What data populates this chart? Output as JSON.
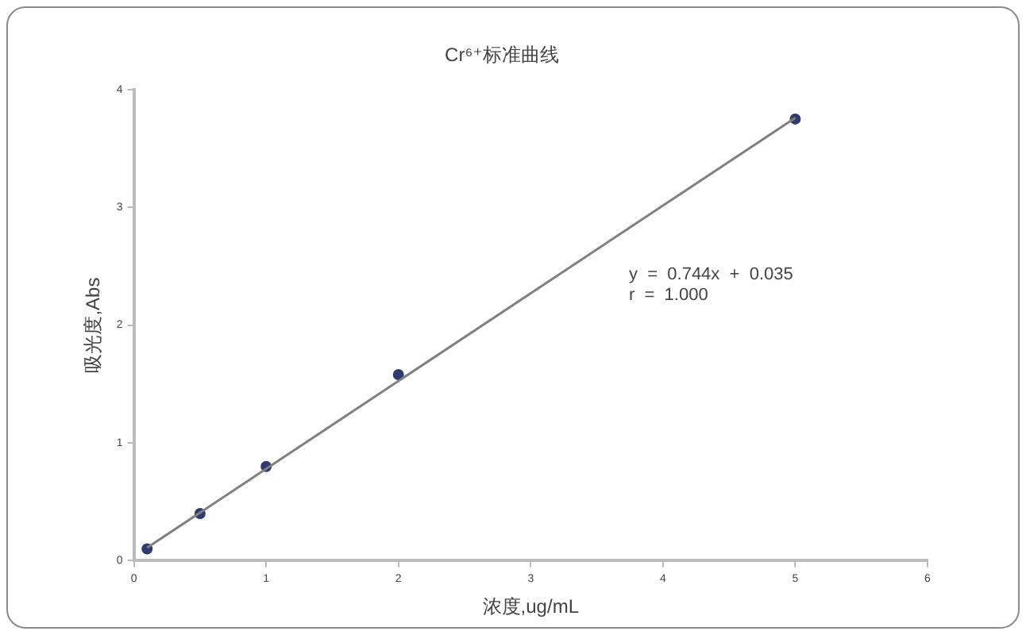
{
  "chart_data": {
    "type": "scatter",
    "title": "Cr⁶⁺标准曲线",
    "xlabel": "浓度,ug/mL",
    "ylabel": "吸光度,Abs",
    "xlim": [
      0,
      6
    ],
    "xticks": [
      0,
      1,
      2,
      3,
      4,
      5,
      6
    ],
    "ylim": [
      0,
      4
    ],
    "yticks": [
      0,
      1,
      2,
      3,
      4
    ],
    "grid": false,
    "legend": false,
    "marker": "circle",
    "annotations": [
      "y  =  0.744x  +  0.035",
      "r  =  1.000"
    ],
    "series": [
      {
        "type": "line",
        "color": "#808080",
        "x": [
          0.1,
          5
        ],
        "values": [
          0.11,
          3.76
        ],
        "marker": "none"
      },
      {
        "type": "scatter",
        "color": "#2f3b6e",
        "x": [
          0.1,
          0.5,
          1,
          2,
          5
        ],
        "values": [
          0.1,
          0.4,
          0.8,
          1.58,
          3.75
        ]
      }
    ]
  }
}
